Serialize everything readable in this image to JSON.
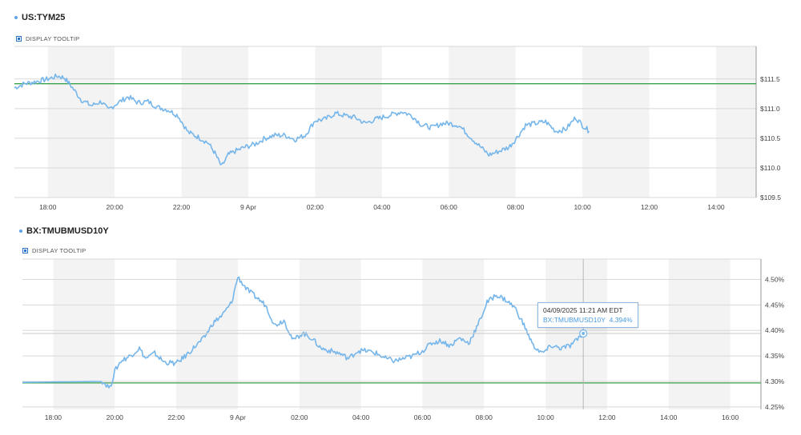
{
  "colors": {
    "series": "#76b6ea",
    "reference": "#3aa24a",
    "band": "#f3f3f3",
    "grid": "#d8d8d8"
  },
  "panels": [
    {
      "title": "US:TYM25",
      "toggle_label": "DISPLAY TOOLTIP"
    },
    {
      "title": "BX:TMUBMUSD10Y",
      "toggle_label": "DISPLAY TOOLTIP"
    }
  ],
  "tooltip": {
    "time": "04/09/2025 11:21 AM EDT",
    "series": "BX:TMUBMUSD10Y",
    "value": "4.394%"
  },
  "chart_data": [
    {
      "type": "line",
      "title": "US:TYM25",
      "x_unit": "hours since 00:00 8 Apr (ET)",
      "x_ticks": [
        {
          "x": 18,
          "label": "18:00"
        },
        {
          "x": 20,
          "label": "20:00"
        },
        {
          "x": 22,
          "label": "22:00"
        },
        {
          "x": 24,
          "label": "9 Apr"
        },
        {
          "x": 26,
          "label": "02:00"
        },
        {
          "x": 28,
          "label": "04:00"
        },
        {
          "x": 30,
          "label": "06:00"
        },
        {
          "x": 32,
          "label": "08:00"
        },
        {
          "x": 34,
          "label": "10:00"
        },
        {
          "x": 36,
          "label": "12:00"
        },
        {
          "x": 38,
          "label": "14:00"
        }
      ],
      "xlim": [
        17,
        39.2
      ],
      "y_ticks": [
        {
          "y": 111.5,
          "label": "$111.5"
        },
        {
          "y": 111.0,
          "label": "$111.0"
        },
        {
          "y": 110.5,
          "label": "$110.5"
        },
        {
          "y": 110.0,
          "label": "$110.0"
        },
        {
          "y": 109.5,
          "label": "$109.5"
        }
      ],
      "ylim": [
        109.5,
        112.05
      ],
      "reference_line": 111.42,
      "x": [
        17.0,
        17.3,
        17.6,
        18.0,
        18.3,
        18.5,
        18.7,
        19.0,
        19.3,
        19.6,
        19.8,
        20.1,
        20.4,
        20.7,
        21.0,
        21.3,
        21.6,
        21.9,
        22.2,
        22.5,
        22.8,
        23.0,
        23.2,
        23.4,
        23.6,
        23.9,
        24.2,
        24.5,
        24.8,
        25.1,
        25.4,
        25.7,
        26.0,
        26.3,
        26.6,
        26.9,
        27.2,
        27.5,
        27.8,
        28.0,
        28.3,
        28.6,
        28.9,
        29.2,
        29.5,
        29.8,
        30.0,
        30.3,
        30.6,
        30.9,
        31.2,
        31.5,
        31.8,
        32.0,
        32.3,
        32.6,
        32.9,
        33.2,
        33.5,
        33.8,
        34.0,
        34.2
      ],
      "values": [
        111.35,
        111.42,
        111.45,
        111.5,
        111.55,
        111.52,
        111.38,
        111.15,
        111.05,
        111.12,
        110.98,
        111.1,
        111.2,
        111.1,
        111.12,
        111.02,
        110.98,
        110.88,
        110.6,
        110.52,
        110.42,
        110.25,
        110.02,
        110.22,
        110.28,
        110.35,
        110.4,
        110.5,
        110.55,
        110.55,
        110.48,
        110.55,
        110.8,
        110.82,
        110.92,
        110.88,
        110.85,
        110.75,
        110.82,
        110.85,
        110.9,
        110.95,
        110.88,
        110.72,
        110.68,
        110.75,
        110.75,
        110.72,
        110.55,
        110.38,
        110.22,
        110.28,
        110.35,
        110.48,
        110.72,
        110.75,
        110.78,
        110.62,
        110.65,
        110.85,
        110.72,
        110.62
      ]
    },
    {
      "type": "line",
      "title": "BX:TMUBMUSD10Y",
      "x_unit": "hours since 00:00 8 Apr (ET)",
      "x_ticks": [
        {
          "x": 18,
          "label": "18:00"
        },
        {
          "x": 20,
          "label": "20:00"
        },
        {
          "x": 22,
          "label": "22:00"
        },
        {
          "x": 24,
          "label": "9 Apr"
        },
        {
          "x": 26,
          "label": "02:00"
        },
        {
          "x": 28,
          "label": "04:00"
        },
        {
          "x": 30,
          "label": "06:00"
        },
        {
          "x": 32,
          "label": "08:00"
        },
        {
          "x": 34,
          "label": "10:00"
        },
        {
          "x": 36,
          "label": "12:00"
        },
        {
          "x": 38,
          "label": "14:00"
        },
        {
          "x": 40,
          "label": "16:00"
        }
      ],
      "xlim": [
        17,
        41.0
      ],
      "y_ticks": [
        {
          "y": 4.5,
          "label": "4.50%"
        },
        {
          "y": 4.45,
          "label": "4.45%"
        },
        {
          "y": 4.4,
          "label": "4.40%"
        },
        {
          "y": 4.35,
          "label": "4.35%"
        },
        {
          "y": 4.3,
          "label": "4.30%"
        },
        {
          "y": 4.25,
          "label": "4.25%"
        }
      ],
      "ylim": [
        4.245,
        4.54
      ],
      "reference_line": 4.297,
      "x": [
        17.0,
        19.6,
        19.85,
        20.0,
        20.2,
        20.5,
        20.8,
        21.0,
        21.3,
        21.6,
        22.0,
        22.3,
        22.6,
        22.9,
        23.2,
        23.5,
        23.8,
        24.0,
        24.3,
        24.6,
        24.9,
        25.2,
        25.5,
        25.8,
        26.1,
        26.4,
        26.7,
        27.0,
        27.3,
        27.6,
        27.9,
        28.2,
        28.5,
        28.8,
        29.1,
        29.4,
        29.7,
        30.0,
        30.3,
        30.6,
        30.9,
        31.2,
        31.5,
        31.8,
        32.1,
        32.4,
        32.7,
        33.0,
        33.3,
        33.6,
        33.9,
        34.2,
        34.5,
        34.8,
        35.0,
        35.2
      ],
      "values": [
        4.298,
        4.3,
        4.287,
        4.32,
        4.34,
        4.35,
        4.365,
        4.345,
        4.355,
        4.338,
        4.335,
        4.35,
        4.368,
        4.385,
        4.415,
        4.43,
        4.455,
        4.505,
        4.48,
        4.465,
        4.45,
        4.41,
        4.42,
        4.38,
        4.395,
        4.385,
        4.365,
        4.36,
        4.355,
        4.345,
        4.36,
        4.36,
        4.355,
        4.345,
        4.34,
        4.345,
        4.35,
        4.36,
        4.375,
        4.38,
        4.37,
        4.385,
        4.375,
        4.41,
        4.455,
        4.47,
        4.46,
        4.445,
        4.41,
        4.37,
        4.355,
        4.37,
        4.365,
        4.37,
        4.38,
        4.394
      ]
    }
  ]
}
